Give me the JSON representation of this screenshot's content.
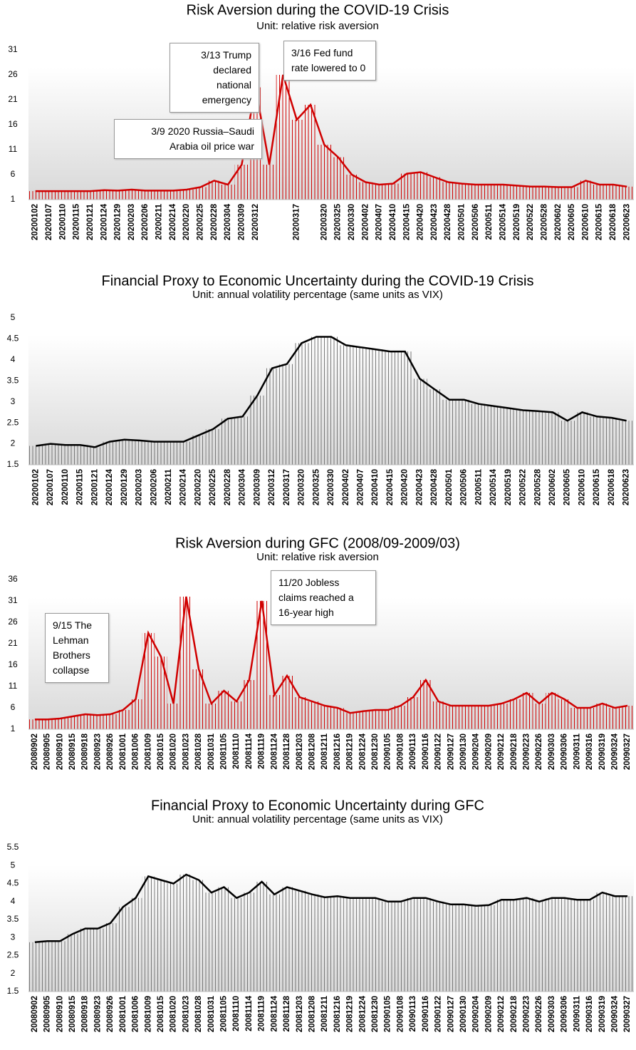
{
  "chart_data": [
    {
      "type": "bar-line",
      "title": "Risk Aversion during the COVID-19 Crisis",
      "subtitle": "Unit:  relative  risk aversion",
      "color": "#d00000",
      "categories": [
        "20200102",
        "20200107",
        "20200110",
        "20200115",
        "20200121",
        "20200124",
        "20200129",
        "20200203",
        "20200206",
        "20200211",
        "20200214",
        "20200220",
        "20200225",
        "20200228",
        "20200304",
        "20200309",
        "20200312",
        null,
        null,
        "20200317",
        null,
        "20200320",
        "20200325",
        "20200330",
        "20200402",
        "20200407",
        "20200410",
        "20200415",
        "20200420",
        "20200423",
        "20200428",
        "20200501",
        "20200506",
        "20200511",
        "20200514",
        "20200519",
        "20200522",
        "20200528",
        "20200602",
        "20200605",
        "20200610",
        "20200615",
        "20200618",
        "20200623"
      ],
      "values": [
        2.7,
        2.7,
        2.7,
        2.7,
        2.7,
        2.9,
        2.8,
        3,
        2.8,
        2.8,
        2.8,
        3,
        3.5,
        4.8,
        4,
        8,
        23.5,
        8,
        26,
        17,
        20,
        12,
        9.5,
        6,
        4.5,
        4,
        4.2,
        6.2,
        6.5,
        5.5,
        4.5,
        4.2,
        4,
        4,
        4,
        3.8,
        3.6,
        3.6,
        3.5,
        3.5,
        4.8,
        4,
        4,
        3.6
      ],
      "ylim": [
        1,
        31
      ],
      "yticks": [
        1,
        6,
        11,
        16,
        21,
        26,
        31
      ],
      "annotations": [
        "3/13 Trump declared national emergency",
        "3/16 Fed fund rate lowered to 0",
        "3/9 2020 Russia–Saudi Arabia oil price war"
      ]
    },
    {
      "type": "bar-line",
      "title": "Financial Proxy to Economic Uncertainty during the COVID-19 Crisis",
      "subtitle": "Unit:  annual  volatility  percentage (same units as VIX)",
      "color": "#000000",
      "categories": [
        "20200102",
        "20200107",
        "20200110",
        "20200115",
        "20200121",
        "20200124",
        "20200129",
        "20200203",
        "20200206",
        "20200211",
        "20200214",
        "20200220",
        "20200225",
        "20200228",
        "20200304",
        "20200309",
        "20200312",
        "20200317",
        "20200320",
        "20200325",
        "20200330",
        "20200402",
        "20200407",
        "20200410",
        "20200415",
        "20200420",
        "20200423",
        "20200428",
        "20200501",
        "20200506",
        "20200511",
        "20200514",
        "20200519",
        "20200522",
        "20200528",
        "20200602",
        "20200605",
        "20200610",
        "20200615",
        "20200618",
        "20200623"
      ],
      "values": [
        1.95,
        2,
        1.97,
        1.97,
        1.92,
        2.05,
        2.1,
        2.08,
        2.05,
        2.05,
        2.05,
        2.2,
        2.35,
        2.6,
        2.65,
        3.15,
        3.8,
        3.9,
        4.4,
        4.55,
        4.55,
        4.35,
        4.3,
        4.25,
        4.2,
        4.2,
        3.55,
        3.3,
        3.05,
        3.05,
        2.95,
        2.9,
        2.85,
        2.8,
        2.78,
        2.75,
        2.55,
        2.75,
        2.65,
        2.62,
        2.55
      ],
      "ylim": [
        1.5,
        5
      ],
      "yticks": [
        1.5,
        2,
        2.5,
        3,
        3.5,
        4,
        4.5,
        5
      ]
    },
    {
      "type": "bar-line",
      "title": "Risk Aversion during GFC (2008/09-2009/03)",
      "subtitle": "Unit:  relative  risk aversion",
      "color": "#d00000",
      "categories": [
        "20080902",
        "20080905",
        "20080910",
        "20080915",
        "20080918",
        "20080923",
        "20080926",
        "20081001",
        "20081006",
        "20081009",
        "20081015",
        "20081020",
        "20081023",
        "20081028",
        "20081031",
        "20081105",
        "20081110",
        "20081114",
        "20081119",
        "20081124",
        "20081128",
        "20081203",
        "20081208",
        "20081211",
        "20081216",
        "20081219",
        "20081224",
        "20081230",
        "20090105",
        "20090108",
        "20090113",
        "20090116",
        "20090122",
        "20090127",
        "20090130",
        "20090204",
        "20090209",
        "20090212",
        "20090218",
        "20090223",
        "20090226",
        "20090303",
        "20090306",
        "20090311",
        "20090316",
        "20090319",
        "20090324",
        "20090327"
      ],
      "values": [
        3.3,
        3.3,
        3.5,
        4,
        4.5,
        4.3,
        4.5,
        5.5,
        8,
        23.5,
        18,
        7,
        32,
        15,
        7,
        10,
        7.5,
        12.5,
        31,
        9,
        13.5,
        8.5,
        7.5,
        6.5,
        6,
        4.8,
        5.2,
        5.5,
        5.5,
        6.5,
        8.5,
        12.5,
        7.5,
        6.5,
        6.5,
        6.5,
        6.5,
        7,
        8,
        9.5,
        7,
        9.5,
        8,
        6,
        6,
        7,
        6,
        6.5
      ],
      "ylim": [
        1,
        36
      ],
      "yticks": [
        1,
        6,
        11,
        16,
        21,
        26,
        31,
        36
      ],
      "annotations": [
        "9/15 The Lehman Brothers collapse",
        "11/20 Jobless claims reached a 16-year high"
      ]
    },
    {
      "type": "bar-line",
      "title": "Financial Proxy to Economic Uncertainty during GFC",
      "subtitle": "Unit:  annual  volatility  percentage (same units as VIX)",
      "color": "#000000",
      "categories": [
        "20080902",
        "20080905",
        "20080910",
        "20080915",
        "20080918",
        "20080923",
        "20080926",
        "20081001",
        "20081006",
        "20081009",
        "20081015",
        "20081020",
        "20081023",
        "20081028",
        "20081031",
        "20081105",
        "20081110",
        "20081114",
        "20081119",
        "20081124",
        "20081128",
        "20081203",
        "20081208",
        "20081211",
        "20081216",
        "20081219",
        "20081224",
        "20081230",
        "20090105",
        "20090108",
        "20090113",
        "20090116",
        "20090122",
        "20090127",
        "20090130",
        "20090204",
        "20090209",
        "20090212",
        "20090218",
        "20090223",
        "20090226",
        "20090303",
        "20090306",
        "20090311",
        "20090316",
        "20090319",
        "20090324",
        "20090327"
      ],
      "values": [
        2.87,
        2.9,
        2.9,
        3.1,
        3.25,
        3.25,
        3.4,
        3.85,
        4.1,
        4.7,
        4.6,
        4.5,
        4.75,
        4.6,
        4.25,
        4.4,
        4.1,
        4.25,
        4.55,
        4.2,
        4.4,
        4.3,
        4.2,
        4.12,
        4.15,
        4.1,
        4.1,
        4.1,
        4,
        4,
        4.1,
        4.1,
        4,
        3.92,
        3.92,
        3.88,
        3.9,
        4.05,
        4.05,
        4.1,
        4,
        4.1,
        4.1,
        4.05,
        4.05,
        4.25,
        4.15,
        4.15
      ],
      "ylim": [
        1.5,
        5.5
      ],
      "yticks": [
        1.5,
        2,
        2.5,
        3,
        3.5,
        4,
        4.5,
        5,
        5.5
      ]
    }
  ]
}
